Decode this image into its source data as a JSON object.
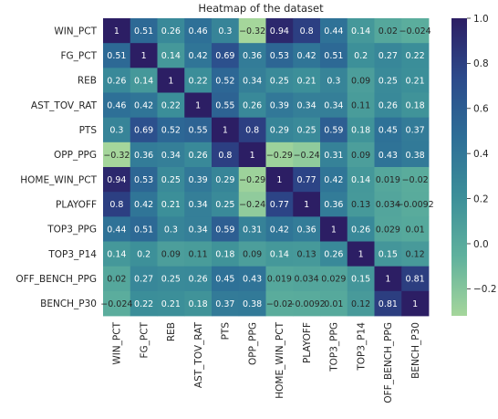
{
  "chart_data": {
    "type": "heatmap",
    "title": "Heatmap of the dataset",
    "xlabel": "",
    "ylabel": "",
    "labels": [
      "WIN_PCT",
      "FG_PCT",
      "REB",
      "AST_TOV_RAT",
      "PTS",
      "OPP_PPG",
      "HOME_WIN_PCT",
      "PLAYOFF",
      "TOP3_PPG",
      "TOP3_P14",
      "OFF_BENCH_PPG",
      "BENCH_P30"
    ],
    "matrix": [
      [
        1,
        0.51,
        0.26,
        0.46,
        0.3,
        -0.32,
        0.94,
        0.8,
        0.44,
        0.14,
        0.02,
        -0.024
      ],
      [
        0.51,
        1,
        0.14,
        0.42,
        0.69,
        0.36,
        0.53,
        0.42,
        0.51,
        0.2,
        0.27,
        0.22
      ],
      [
        0.26,
        0.14,
        1,
        0.22,
        0.52,
        0.34,
        0.25,
        0.21,
        0.3,
        0.09,
        0.25,
        0.21
      ],
      [
        0.46,
        0.42,
        0.22,
        1,
        0.55,
        0.26,
        0.39,
        0.34,
        0.34,
        0.11,
        0.26,
        0.18
      ],
      [
        0.3,
        0.69,
        0.52,
        0.55,
        1,
        0.8,
        0.29,
        0.25,
        0.59,
        0.18,
        0.45,
        0.37
      ],
      [
        -0.32,
        0.36,
        0.34,
        0.26,
        0.8,
        1,
        -0.29,
        -0.24,
        0.31,
        0.09,
        0.43,
        0.38
      ],
      [
        0.94,
        0.53,
        0.25,
        0.39,
        0.29,
        -0.29,
        1,
        0.77,
        0.42,
        0.14,
        0.019,
        -0.02
      ],
      [
        0.8,
        0.42,
        0.21,
        0.34,
        0.25,
        -0.24,
        0.77,
        1,
        0.36,
        0.13,
        0.034,
        -0.0092
      ],
      [
        0.44,
        0.51,
        0.3,
        0.34,
        0.59,
        0.31,
        0.42,
        0.36,
        1,
        0.26,
        0.029,
        0.01
      ],
      [
        0.14,
        0.2,
        0.09,
        0.11,
        0.18,
        0.09,
        0.14,
        0.13,
        0.26,
        1,
        0.15,
        0.12
      ],
      [
        0.02,
        0.27,
        0.25,
        0.26,
        0.45,
        0.43,
        0.019,
        0.034,
        0.029,
        0.15,
        1,
        0.81
      ],
      [
        -0.024,
        0.22,
        0.21,
        0.18,
        0.37,
        0.38,
        -0.02,
        -0.0092,
        0.01,
        0.12,
        0.81,
        1
      ]
    ],
    "colormap": "crest",
    "colormap_stops": [
      "#a5d69b",
      "#5fb19d",
      "#3c8f99",
      "#2d6e97",
      "#2c4a8b",
      "#2c1e64"
    ],
    "vmin": -0.32,
    "vmax": 1,
    "colorbar": {
      "ticks": [
        -0.2,
        0.0,
        0.2,
        0.4,
        0.6,
        0.8,
        1.0
      ],
      "tick_labels": [
        "−0.2",
        "0.0",
        "0.2",
        "0.4",
        "0.6",
        "0.8",
        "1.0"
      ]
    }
  }
}
